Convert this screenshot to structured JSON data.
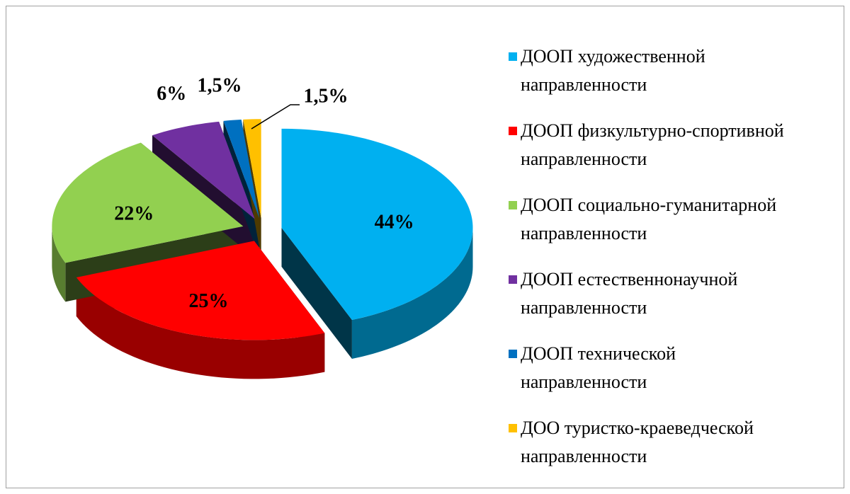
{
  "chart_data": {
    "type": "pie",
    "categories": [
      "ДООП художественной направленности",
      "ДООП физкультурно-спортивной направленности",
      "ДООП социально-гуманитарной направленности",
      "ДООП естественнонаучной направленности",
      "ДООП технической направленности",
      "ДОО туристко-краеведческой направленности"
    ],
    "values": [
      44,
      25,
      22,
      6,
      1.5,
      1.5
    ],
    "value_labels": [
      "44%",
      "25%",
      "22%",
      "6%",
      "1,5%",
      "1,5%"
    ],
    "colors": [
      "#00b0f0",
      "#ff0000",
      "#92d050",
      "#7030a0",
      "#0070c0",
      "#ffc000"
    ],
    "legend": "right"
  }
}
